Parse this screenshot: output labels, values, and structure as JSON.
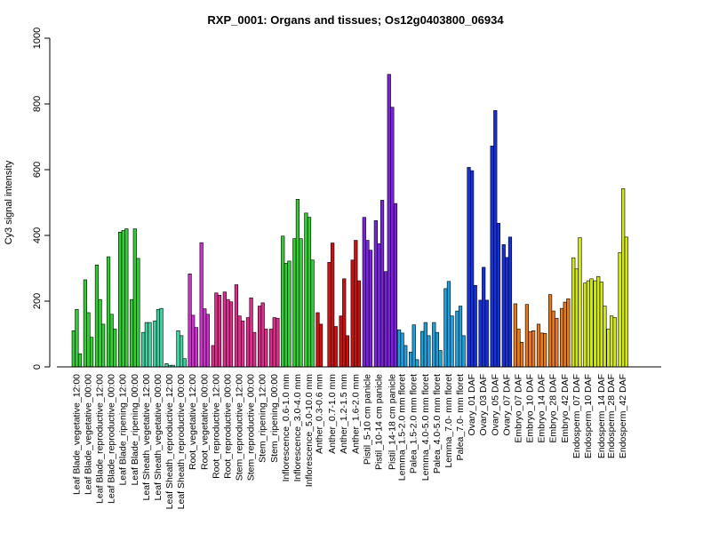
{
  "chart_data": {
    "type": "bar",
    "title": "RXP_0001: Organs and tissues; Os12g0403800_06934",
    "xlabel": "",
    "ylabel": "Cy3 signal intensity",
    "ylim": [
      0,
      1000
    ],
    "yticks": [
      0,
      200,
      400,
      600,
      800,
      1000
    ],
    "grid": false,
    "legend": "none",
    "groups": [
      {
        "label": "Leaf Blade_vegetative_12:00",
        "color": "#32cd32",
        "values": [
          110,
          175,
          40
        ]
      },
      {
        "label": "Leaf Blade_vegetative_00:00",
        "color": "#32cd32",
        "values": [
          265,
          165,
          90
        ]
      },
      {
        "label": "Leaf Blade_reproductive_12:00",
        "color": "#32cd32",
        "values": [
          310,
          205,
          130
        ]
      },
      {
        "label": "Leaf Blade_reproductive_00:00",
        "color": "#32cd32",
        "values": [
          335,
          160,
          115
        ]
      },
      {
        "label": "Leaf Blade_ripening_12:00",
        "color": "#32cd32",
        "values": [
          410,
          415,
          420
        ]
      },
      {
        "label": "Leaf Blade_ripening_00:00",
        "color": "#32cd32",
        "values": [
          205,
          420,
          330
        ]
      },
      {
        "label": "Leaf Sheath_vegetative_12:00",
        "color": "#3cd2a0",
        "values": [
          105,
          135,
          135
        ]
      },
      {
        "label": "Leaf Sheath_vegetative_00:00",
        "color": "#3cd2a0",
        "values": [
          140,
          175,
          178
        ]
      },
      {
        "label": "Leaf Sheath_reproductive_12:00",
        "color": "#3cd2a0",
        "values": [
          10,
          5,
          5
        ]
      },
      {
        "label": "Leaf Sheath_reproductive_00:00",
        "color": "#3cd2a0",
        "values": [
          110,
          95,
          25
        ]
      },
      {
        "label": "Root_vegetative_12:00",
        "color": "#cd32cd",
        "values": [
          283,
          157,
          120
        ]
      },
      {
        "label": "Root_vegetative_00:00",
        "color": "#cd32cd",
        "values": [
          378,
          177,
          160
        ]
      },
      {
        "label": "Root_reproductive_12:00",
        "color": "#dc2d8c",
        "values": [
          65,
          225,
          218
        ]
      },
      {
        "label": "Root_reproductive_00:00",
        "color": "#dc2d8c",
        "values": [
          228,
          205,
          198
        ]
      },
      {
        "label": "Stem_reproductive_12:00",
        "color": "#dc2d8c",
        "values": [
          250,
          155,
          140
        ]
      },
      {
        "label": "Stem_reproductive_00:00",
        "color": "#dc2d8c",
        "values": [
          150,
          210,
          105
        ]
      },
      {
        "label": "Stem_ripening_12:00",
        "color": "#dc2d8c",
        "values": [
          185,
          195,
          115
        ]
      },
      {
        "label": "Stem_ripening_00:00",
        "color": "#dc2d8c",
        "values": [
          115,
          150,
          148
        ]
      },
      {
        "label": "Inflorescence_0.6-1.0 mm",
        "color": "#32cd32",
        "values": [
          398,
          315,
          322
        ]
      },
      {
        "label": "Inflorescence_3.0-4.0 mm",
        "color": "#32cd32",
        "values": [
          390,
          510,
          390
        ]
      },
      {
        "label": "Inflorescence_5.0-10.0 mm",
        "color": "#32cd32",
        "values": [
          468,
          455,
          325
        ]
      },
      {
        "label": "Anther_0.3-0.6 mm",
        "color": "#cd1010",
        "values": [
          165,
          130
        ]
      },
      {
        "label": "Anther_0.7-1.0 mm",
        "color": "#cd1010",
        "values": [
          318,
          377,
          123
        ]
      },
      {
        "label": "Anther_1.2-1.5 mm",
        "color": "#cd1010",
        "values": [
          155,
          268,
          95
        ]
      },
      {
        "label": "Anther_1.6-2.0 mm",
        "color": "#cd1010",
        "values": [
          325,
          385,
          262
        ]
      },
      {
        "label": "Pistil_5-10 cm panicle",
        "color": "#7a22dc",
        "values": [
          455,
          385,
          355
        ]
      },
      {
        "label": "Pistil_10-14 cm panicle",
        "color": "#7a22dc",
        "values": [
          445,
          375,
          507
        ]
      },
      {
        "label": "Pistil_14-18 cm panicle",
        "color": "#7a22dc",
        "values": [
          290,
          890,
          790,
          497
        ]
      },
      {
        "label": "Lemma_1.5-2.0 mm floret",
        "color": "#1ea0dc",
        "values": [
          113,
          103,
          65
        ]
      },
      {
        "label": "Palea_1.5-2.0 mm floret",
        "color": "#1ea0dc",
        "values": [
          45,
          128,
          22
        ]
      },
      {
        "label": "Lemma_4.0-5.0 mm floret",
        "color": "#1ea0dc",
        "values": [
          108,
          135,
          95
        ]
      },
      {
        "label": "Palea_4.0-5.0 mm floret",
        "color": "#1ea0dc",
        "values": [
          135,
          105,
          50
        ]
      },
      {
        "label": "Lemma_7.0- mm floret",
        "color": "#1ea0dc",
        "values": [
          238,
          260,
          155
        ]
      },
      {
        "label": "Palea_7.0- mm floret",
        "color": "#1ea0dc",
        "values": [
          170,
          185,
          95
        ]
      },
      {
        "label": "Ovary_01 DAF",
        "color": "#1432dc",
        "values": [
          607,
          597,
          248
        ]
      },
      {
        "label": "Ovary_03 DAF",
        "color": "#1432dc",
        "values": [
          203,
          303,
          203
        ]
      },
      {
        "label": "Ovary_05 DAF",
        "color": "#1432dc",
        "values": [
          672,
          780,
          437
        ]
      },
      {
        "label": "Ovary_07 DAF",
        "color": "#1432dc",
        "values": [
          372,
          333,
          395
        ]
      },
      {
        "label": "Embryo_07 DAF",
        "color": "#e6781e",
        "values": [
          192,
          115,
          75
        ]
      },
      {
        "label": "Embryo_10 DAF",
        "color": "#e6781e",
        "values": [
          190,
          107,
          110
        ]
      },
      {
        "label": "Embryo_14 DAF",
        "color": "#e6781e",
        "values": [
          130,
          103,
          102
        ]
      },
      {
        "label": "Embryo_28 DAF",
        "color": "#e6781e",
        "values": [
          220,
          170,
          148
        ]
      },
      {
        "label": "Embryo_42 DAF",
        "color": "#e6781e",
        "values": [
          178,
          197,
          207
        ]
      },
      {
        "label": "Endosperm_07 DAF",
        "color": "#d2e61e",
        "values": [
          332,
          298,
          393
        ]
      },
      {
        "label": "Endosperm_10 DAF",
        "color": "#d2e61e",
        "values": [
          255,
          262,
          268
        ]
      },
      {
        "label": "Endosperm_14 DAF",
        "color": "#d2e61e",
        "values": [
          262,
          275,
          258,
          185
        ]
      },
      {
        "label": "Endosperm_28 DAF",
        "color": "#d2e61e",
        "values": [
          115,
          155,
          150
        ]
      },
      {
        "label": "Endosperm_42 DAF",
        "color": "#d2e61e",
        "values": [
          348,
          542,
          395
        ]
      }
    ]
  }
}
